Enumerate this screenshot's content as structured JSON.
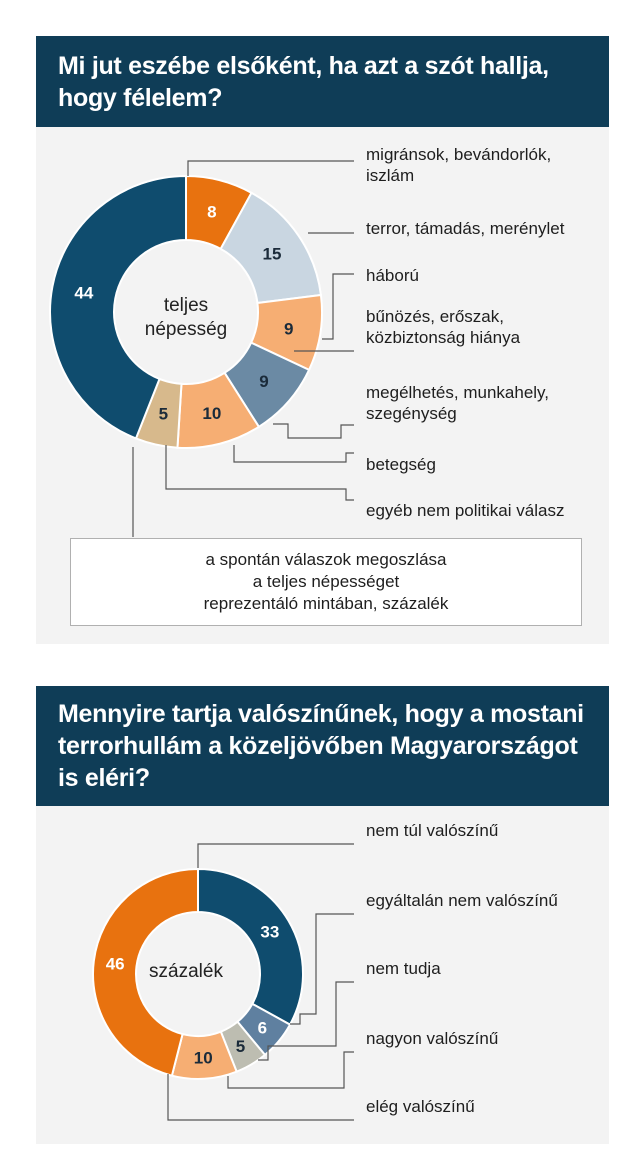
{
  "chart_data": [
    {
      "type": "pie",
      "title": "Mi jut eszébe elsőként, ha azt a szót hallja, hogy félelem?",
      "center_label": [
        "teljes",
        "népesség"
      ],
      "note": [
        "a spontán válaszok megoszlása",
        "a teljes népességet",
        "reprezentáló mintában, százalék"
      ],
      "slices": [
        {
          "label": [
            "migránsok, bevándorlók,",
            "iszlám"
          ],
          "value": 8,
          "color": "#e8720f",
          "text_color": "#ffffff"
        },
        {
          "label": [
            "terror, támadás, merénylet"
          ],
          "value": 15,
          "color": "#c9d6e1",
          "text_color": "#1b2b3a"
        },
        {
          "label": [
            "háború"
          ],
          "value": 0,
          "color": "#c9d6e1",
          "text_color": "#1b2b3a"
        },
        {
          "label": [
            "bűnözés, erőszak,",
            "közbiztonság hiánya"
          ],
          "value": 9,
          "color": "#f6ae73",
          "text_color": "#1b2b3a"
        },
        {
          "label": [
            "megélhetés, munkahely,",
            "szegénység"
          ],
          "value": 9,
          "color": "#6b8aa4",
          "text_color": "#1b2b3a"
        },
        {
          "label": [
            "betegség"
          ],
          "value": 10,
          "color": "#f6ae73",
          "text_color": "#1b2b3a"
        },
        {
          "label": [
            "egyéb nem politikai válasz"
          ],
          "value": 5,
          "color": "#d7b98c",
          "text_color": "#1b2b3a"
        },
        {
          "label": [
            ""
          ],
          "value": 44,
          "color": "#0f4c6e",
          "text_color": "#ffffff"
        }
      ]
    },
    {
      "type": "pie",
      "title": "Mennyire tartja valószínűnek, hogy a mostani terrorhullám a közeljövőben Magyarországot is eléri?",
      "center_label": [
        "százalék"
      ],
      "slices": [
        {
          "label": [
            "nem túl valószínű"
          ],
          "value": 33,
          "color": "#0f4c6e",
          "text_color": "#ffffff"
        },
        {
          "label": [
            "egyáltalán nem valószínű"
          ],
          "value": 6,
          "color": "#5f80a0",
          "text_color": "#ffffff"
        },
        {
          "label": [
            "nem tudja"
          ],
          "value": 5,
          "color": "#bdbdb1",
          "text_color": "#1b2b3a"
        },
        {
          "label": [
            "nagyon valószínű"
          ],
          "value": 10,
          "color": "#f6ae73",
          "text_color": "#1b2b3a"
        },
        {
          "label": [
            "elég valószínű"
          ],
          "value": 46,
          "color": "#e8720f",
          "text_color": "#ffffff"
        }
      ]
    }
  ]
}
